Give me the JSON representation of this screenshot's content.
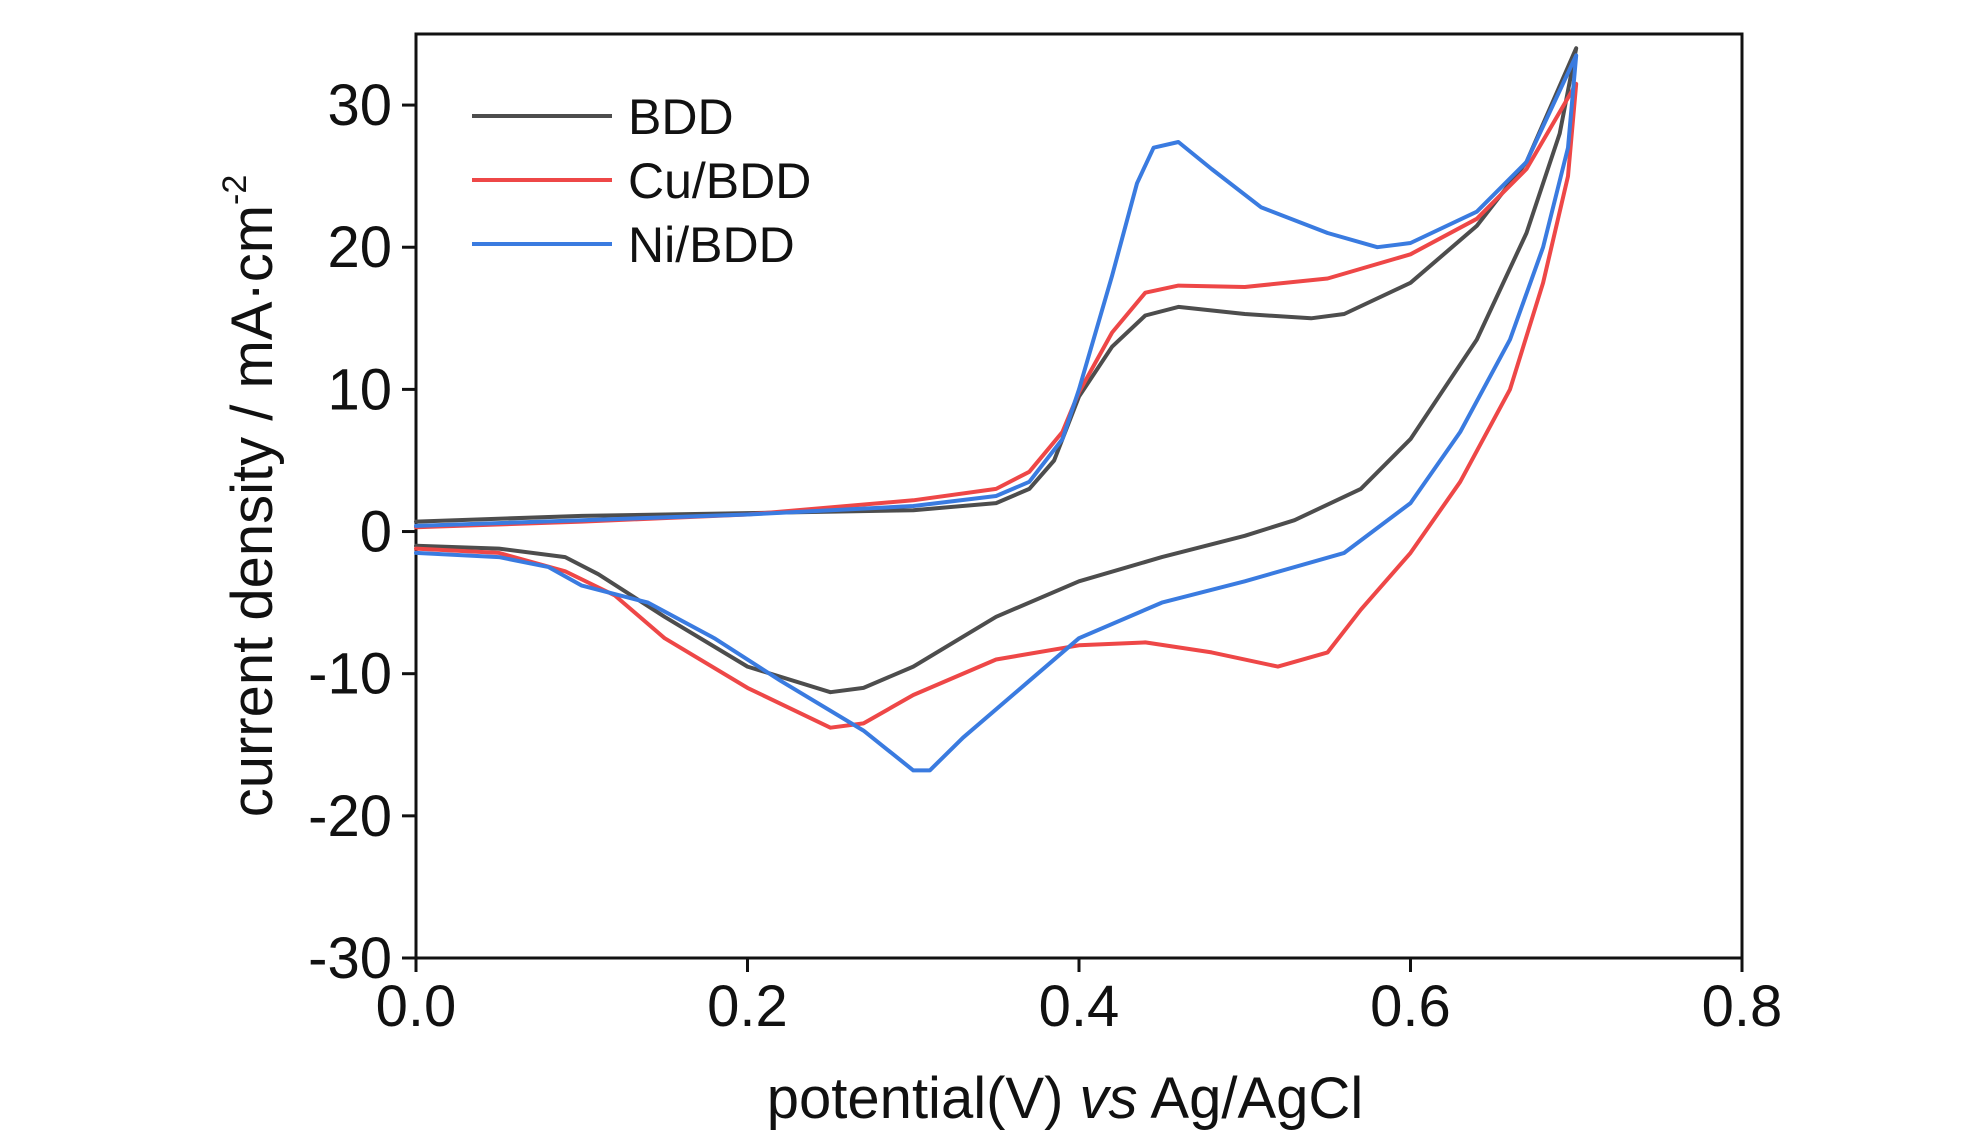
{
  "chart_data": {
    "type": "line",
    "title": "",
    "xlabel": {
      "main": "potential(V) ",
      "italic": "vs",
      "suffix": " Ag/AgCl"
    },
    "ylabel": {
      "main": "current density / mA·cm",
      "superscript": "-2"
    },
    "xlim": [
      0.0,
      0.8
    ],
    "ylim": [
      -30,
      35
    ],
    "xticks": [
      0.0,
      0.2,
      0.4,
      0.6,
      0.8
    ],
    "xtick_labels": [
      "0.0",
      "0.2",
      "0.4",
      "0.6",
      "0.8"
    ],
    "yticks": [
      -30,
      -20,
      -10,
      0,
      10,
      20,
      30
    ],
    "ytick_labels": [
      "-30",
      "-20",
      "-10",
      "0",
      "10",
      "20",
      "30"
    ],
    "grid": false,
    "legend_position": "top-left",
    "series": [
      {
        "name": "BDD",
        "color": "#4d4d4d",
        "points": [
          [
            0.0,
            0.7
          ],
          [
            0.1,
            1.1
          ],
          [
            0.2,
            1.3
          ],
          [
            0.3,
            1.5
          ],
          [
            0.35,
            2.0
          ],
          [
            0.37,
            3.0
          ],
          [
            0.385,
            5.0
          ],
          [
            0.4,
            9.5
          ],
          [
            0.42,
            13.0
          ],
          [
            0.44,
            15.2
          ],
          [
            0.46,
            15.8
          ],
          [
            0.5,
            15.3
          ],
          [
            0.54,
            15.0
          ],
          [
            0.56,
            15.3
          ],
          [
            0.6,
            17.5
          ],
          [
            0.64,
            21.5
          ],
          [
            0.67,
            26.0
          ],
          [
            0.7,
            34.0
          ],
          [
            0.69,
            28.0
          ],
          [
            0.67,
            21.0
          ],
          [
            0.64,
            13.5
          ],
          [
            0.6,
            6.5
          ],
          [
            0.57,
            3.0
          ],
          [
            0.53,
            0.8
          ],
          [
            0.5,
            -0.3
          ],
          [
            0.45,
            -1.8
          ],
          [
            0.4,
            -3.5
          ],
          [
            0.35,
            -6.0
          ],
          [
            0.3,
            -9.5
          ],
          [
            0.27,
            -11.0
          ],
          [
            0.25,
            -11.3
          ],
          [
            0.2,
            -9.5
          ],
          [
            0.15,
            -6.0
          ],
          [
            0.11,
            -3.0
          ],
          [
            0.09,
            -1.8
          ],
          [
            0.05,
            -1.2
          ],
          [
            0.0,
            -1.0
          ]
        ]
      },
      {
        "name": "Cu/BDD",
        "color": "#ee4747",
        "points": [
          [
            0.0,
            0.3
          ],
          [
            0.1,
            0.7
          ],
          [
            0.2,
            1.2
          ],
          [
            0.3,
            2.2
          ],
          [
            0.35,
            3.0
          ],
          [
            0.37,
            4.2
          ],
          [
            0.39,
            7.0
          ],
          [
            0.4,
            9.8
          ],
          [
            0.42,
            14.0
          ],
          [
            0.44,
            16.8
          ],
          [
            0.46,
            17.3
          ],
          [
            0.5,
            17.2
          ],
          [
            0.55,
            17.8
          ],
          [
            0.6,
            19.5
          ],
          [
            0.64,
            22.0
          ],
          [
            0.67,
            25.5
          ],
          [
            0.7,
            31.5
          ],
          [
            0.695,
            25.0
          ],
          [
            0.68,
            17.5
          ],
          [
            0.66,
            10.0
          ],
          [
            0.63,
            3.5
          ],
          [
            0.6,
            -1.5
          ],
          [
            0.57,
            -5.5
          ],
          [
            0.55,
            -8.5
          ],
          [
            0.52,
            -9.5
          ],
          [
            0.48,
            -8.5
          ],
          [
            0.44,
            -7.8
          ],
          [
            0.4,
            -8.0
          ],
          [
            0.35,
            -9.0
          ],
          [
            0.3,
            -11.5
          ],
          [
            0.27,
            -13.5
          ],
          [
            0.25,
            -13.8
          ],
          [
            0.2,
            -11.0
          ],
          [
            0.15,
            -7.5
          ],
          [
            0.12,
            -4.5
          ],
          [
            0.09,
            -2.8
          ],
          [
            0.05,
            -1.5
          ],
          [
            0.0,
            -1.2
          ]
        ]
      },
      {
        "name": "Ni/BDD",
        "color": "#3a7be0",
        "points": [
          [
            0.0,
            0.4
          ],
          [
            0.1,
            0.8
          ],
          [
            0.2,
            1.2
          ],
          [
            0.3,
            1.8
          ],
          [
            0.35,
            2.5
          ],
          [
            0.37,
            3.5
          ],
          [
            0.39,
            6.5
          ],
          [
            0.4,
            10.0
          ],
          [
            0.42,
            18.0
          ],
          [
            0.435,
            24.5
          ],
          [
            0.445,
            27.0
          ],
          [
            0.46,
            27.4
          ],
          [
            0.48,
            25.5
          ],
          [
            0.51,
            22.8
          ],
          [
            0.55,
            21.0
          ],
          [
            0.58,
            20.0
          ],
          [
            0.6,
            20.3
          ],
          [
            0.64,
            22.5
          ],
          [
            0.67,
            26.0
          ],
          [
            0.7,
            33.5
          ],
          [
            0.695,
            27.0
          ],
          [
            0.68,
            20.0
          ],
          [
            0.66,
            13.5
          ],
          [
            0.63,
            7.0
          ],
          [
            0.6,
            2.0
          ],
          [
            0.56,
            -1.5
          ],
          [
            0.5,
            -3.5
          ],
          [
            0.45,
            -5.0
          ],
          [
            0.4,
            -7.5
          ],
          [
            0.37,
            -10.5
          ],
          [
            0.33,
            -14.5
          ],
          [
            0.31,
            -16.8
          ],
          [
            0.3,
            -16.8
          ],
          [
            0.27,
            -14.0
          ],
          [
            0.22,
            -10.5
          ],
          [
            0.18,
            -7.5
          ],
          [
            0.14,
            -5.0
          ],
          [
            0.1,
            -3.8
          ],
          [
            0.08,
            -2.5
          ],
          [
            0.05,
            -1.8
          ],
          [
            0.0,
            -1.5
          ]
        ]
      }
    ]
  }
}
